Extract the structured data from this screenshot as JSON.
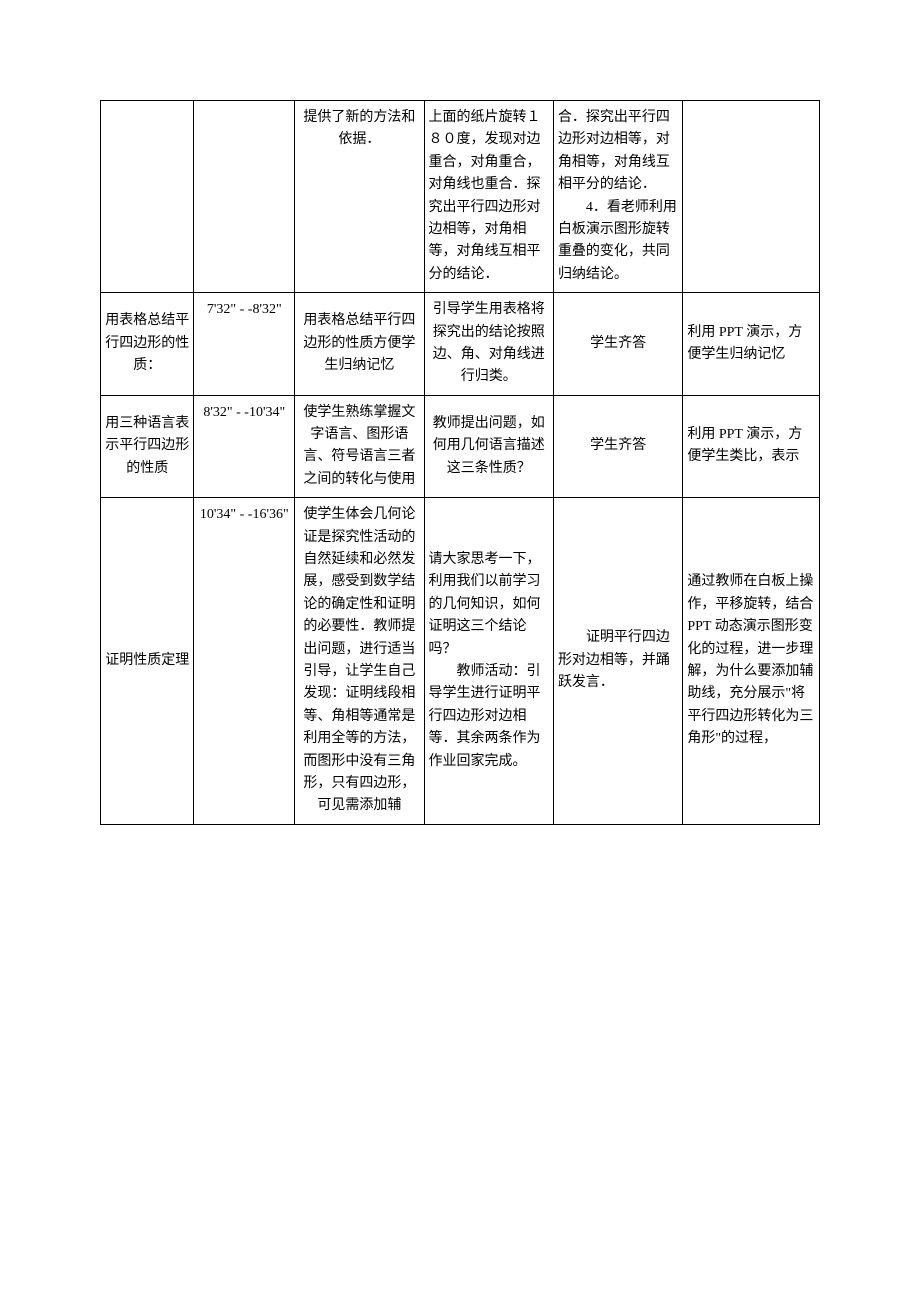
{
  "table": {
    "border_color": "#000000",
    "background_color": "#ffffff",
    "font_size": 14,
    "rows": [
      {
        "cells": [
          {
            "text": ""
          },
          {
            "text": ""
          },
          {
            "text": "提供了新的方法和依据．"
          },
          {
            "text": "上面的纸片旋转１８０度，发现对边重合，对角重合，对角线也重合．探究出平行四边形对边相等，对角相等，对角线互相平分的结论．"
          },
          {
            "text": "合．探究出平行四边形对边相等，对角相等，对角线互相平分的结论．\n　　4．看老师利用白板演示图形旋转重叠的变化，共同归纳结论。"
          },
          {
            "text": ""
          }
        ]
      },
      {
        "cells": [
          {
            "text": "用表格总结平行四边形的性质："
          },
          {
            "text": "7'32\" - -8'32\""
          },
          {
            "text": "用表格总结平行四边形的性质方便学生归纳记忆"
          },
          {
            "text": "引导学生用表格将探究出的结论按照边、角、对角线进行归类。"
          },
          {
            "text": "学生齐答"
          },
          {
            "text": "利用 PPT 演示，方便学生归纳记忆"
          }
        ]
      },
      {
        "cells": [
          {
            "text": "用三种语言表示平行四边形的性质"
          },
          {
            "text": "8'32\" - -10'34\""
          },
          {
            "text": "使学生熟练掌握文字语言、图形语言、符号语言三者之间的转化与使用"
          },
          {
            "text": "教师提出问题，如何用几何语言描述这三条性质？"
          },
          {
            "text": "学生齐答"
          },
          {
            "text": "利用 PPT 演示，方便学生类比，表示"
          }
        ]
      },
      {
        "cells": [
          {
            "text": "证明性质定理"
          },
          {
            "text": "10'34\" - -16'36\""
          },
          {
            "text": "使学生体会几何论证是探究性活动的自然延续和必然发展，感受到数学结论的确定性和证明的必要性．教师提出问题，进行适当引导，让学生自己发现：证明线段相等、角相等通常是利用全等的方法，而图形中没有三角形，只有四边形，可见需添加辅"
          },
          {
            "text": "请大家思考一下，利用我们以前学习的几何知识，如何证明这三个结论吗？\n　　教师活动：引导学生进行证明平行四边形对边相等．其余两条作为作业回家完成。"
          },
          {
            "text": "证明平行四边形对边相等，并踊跃发言．"
          },
          {
            "text": "通过教师在白板上操作，平移旋转，结合PPT 动态演示图形变化的过程，进一步理解，为什么要添加辅助线，充分展示\"将平行四边形转化为三角形\"的过程，"
          }
        ]
      }
    ]
  }
}
